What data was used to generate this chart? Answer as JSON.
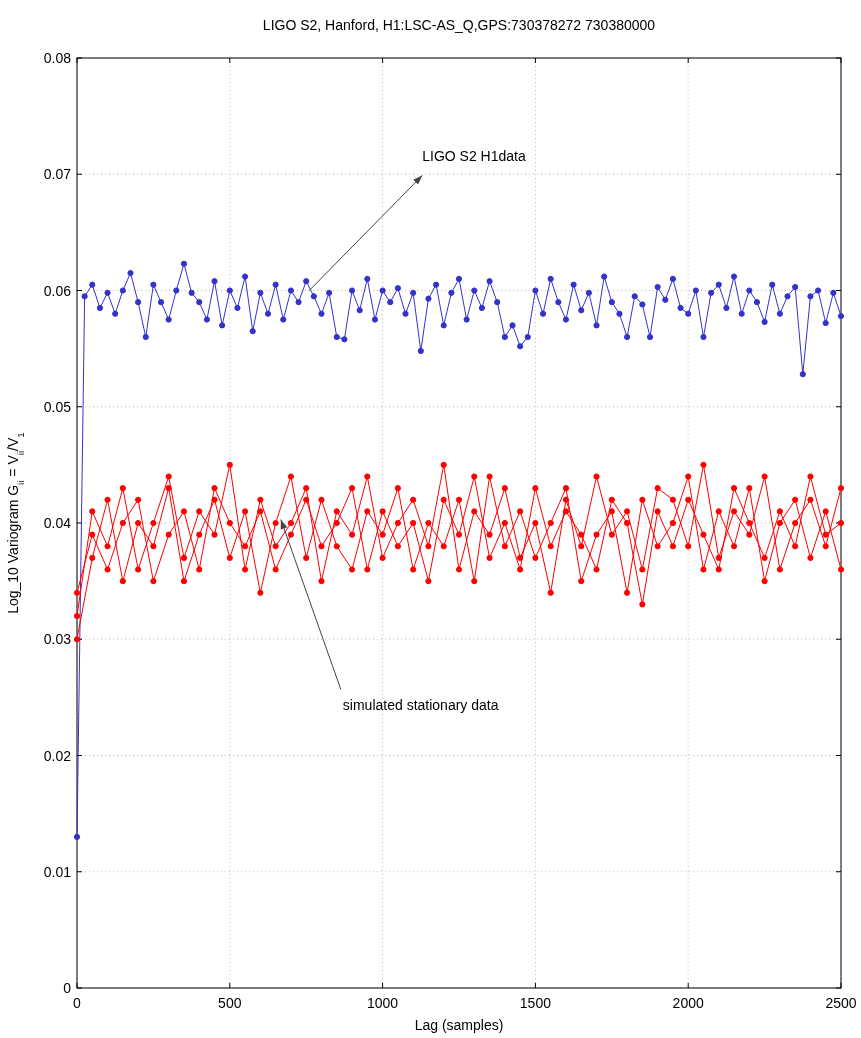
{
  "chart_data": {
    "type": "line",
    "title": "LIGO S2, Hanford, H1:LSC-AS_Q,GPS:730378272 730380000",
    "xlabel": "Lag (samples)",
    "ylabel": "Log_10 Variogram G$_{ii}$ = V$_{ii}$/V$_{1}$",
    "xlim": [
      0,
      2500
    ],
    "xticks": [
      0,
      500,
      1000,
      1500,
      2000,
      2500
    ],
    "ylim": [
      0,
      0.08
    ],
    "yticks": [
      0,
      0.01,
      0.02,
      0.03,
      0.04,
      0.05,
      0.06,
      0.07,
      0.08
    ],
    "grid": true,
    "marker": "circle",
    "line_style": "solid",
    "annotations": [
      {
        "text": "LIGO S2 H1data",
        "x": 760,
        "y": 0.06
      },
      {
        "text": "simulated stationary data",
        "x": 667,
        "y": 0.0403
      }
    ],
    "series": [
      {
        "color": "#3333cc",
        "x": [
          0,
          25,
          50,
          75,
          100,
          125,
          150,
          175,
          200,
          225,
          250,
          275,
          300,
          325,
          350,
          375,
          400,
          425,
          450,
          475,
          500,
          525,
          550,
          575,
          600,
          625,
          650,
          675,
          700,
          725,
          750,
          775,
          800,
          825,
          850,
          875,
          900,
          925,
          950,
          975,
          1000,
          1025,
          1050,
          1075,
          1100,
          1125,
          1150,
          1175,
          1200,
          1225,
          1250,
          1275,
          1300,
          1325,
          1350,
          1375,
          1400,
          1425,
          1450,
          1475,
          1500,
          1525,
          1550,
          1575,
          1600,
          1625,
          1650,
          1675,
          1700,
          1725,
          1750,
          1775,
          1800,
          1825,
          1850,
          1875,
          1900,
          1925,
          1950,
          1975,
          2000,
          2025,
          2050,
          2075,
          2100,
          2125,
          2150,
          2175,
          2200,
          2225,
          2250,
          2275,
          2300,
          2325,
          2350,
          2375,
          2400,
          2425,
          2450,
          2475,
          2500
        ],
        "values": [
          0.013,
          0.0595,
          0.0605,
          0.0585,
          0.0598,
          0.058,
          0.06,
          0.0615,
          0.059,
          0.056,
          0.0605,
          0.059,
          0.0575,
          0.06,
          0.0623,
          0.0598,
          0.059,
          0.0575,
          0.0608,
          0.057,
          0.06,
          0.0585,
          0.0612,
          0.0565,
          0.0598,
          0.058,
          0.0605,
          0.0575,
          0.06,
          0.059,
          0.0608,
          0.0595,
          0.058,
          0.0598,
          0.056,
          0.0558,
          0.06,
          0.0583,
          0.061,
          0.0575,
          0.06,
          0.059,
          0.0602,
          0.058,
          0.0598,
          0.0548,
          0.0593,
          0.0605,
          0.057,
          0.0598,
          0.061,
          0.0575,
          0.06,
          0.0585,
          0.0608,
          0.059,
          0.056,
          0.057,
          0.0552,
          0.056,
          0.06,
          0.058,
          0.061,
          0.059,
          0.0575,
          0.0605,
          0.0583,
          0.0598,
          0.057,
          0.0612,
          0.059,
          0.058,
          0.056,
          0.0595,
          0.0588,
          0.056,
          0.0603,
          0.0592,
          0.061,
          0.0585,
          0.058,
          0.06,
          0.056,
          0.0598,
          0.0605,
          0.0585,
          0.0612,
          0.058,
          0.06,
          0.059,
          0.0573,
          0.0605,
          0.058,
          0.0595,
          0.0603,
          0.0528,
          0.0595,
          0.06,
          0.0572,
          0.0598,
          0.0578
        ]
      },
      {
        "color": "#ff0000",
        "x": [
          0,
          50,
          100,
          150,
          200,
          250,
          300,
          350,
          400,
          450,
          500,
          550,
          600,
          650,
          700,
          750,
          800,
          850,
          900,
          950,
          1000,
          1050,
          1100,
          1150,
          1200,
          1250,
          1300,
          1350,
          1400,
          1450,
          1500,
          1550,
          1600,
          1650,
          1700,
          1750,
          1800,
          1850,
          1900,
          1950,
          2000,
          2050,
          2100,
          2150,
          2200,
          2250,
          2300,
          2350,
          2400,
          2450,
          2500
        ],
        "values": [
          0.032,
          0.041,
          0.038,
          0.043,
          0.036,
          0.04,
          0.044,
          0.037,
          0.041,
          0.039,
          0.045,
          0.036,
          0.042,
          0.038,
          0.04,
          0.043,
          0.035,
          0.041,
          0.039,
          0.044,
          0.037,
          0.04,
          0.042,
          0.038,
          0.045,
          0.036,
          0.041,
          0.039,
          0.043,
          0.037,
          0.04,
          0.034,
          0.042,
          0.038,
          0.044,
          0.039,
          0.041,
          0.036,
          0.043,
          0.042,
          0.038,
          0.045,
          0.037,
          0.041,
          0.039,
          0.044,
          0.036,
          0.04,
          0.042,
          0.038,
          0.043
        ]
      },
      {
        "color": "#ff0000",
        "x": [
          0,
          50,
          100,
          150,
          200,
          250,
          300,
          350,
          400,
          450,
          500,
          550,
          600,
          650,
          700,
          750,
          800,
          850,
          900,
          950,
          1000,
          1050,
          1100,
          1150,
          1200,
          1250,
          1300,
          1350,
          1400,
          1450,
          1500,
          1550,
          1600,
          1650,
          1700,
          1750,
          1800,
          1850,
          1900,
          1950,
          2000,
          2050,
          2100,
          2150,
          2200,
          2250,
          2300,
          2350,
          2400,
          2450,
          2500
        ],
        "values": [
          0.03,
          0.037,
          0.042,
          0.035,
          0.04,
          0.038,
          0.043,
          0.035,
          0.039,
          0.042,
          0.037,
          0.041,
          0.034,
          0.04,
          0.044,
          0.037,
          0.042,
          0.038,
          0.036,
          0.041,
          0.039,
          0.043,
          0.036,
          0.04,
          0.038,
          0.042,
          0.035,
          0.044,
          0.038,
          0.041,
          0.037,
          0.04,
          0.043,
          0.035,
          0.039,
          0.041,
          0.034,
          0.042,
          0.038,
          0.04,
          0.044,
          0.036,
          0.041,
          0.038,
          0.043,
          0.035,
          0.04,
          0.042,
          0.037,
          0.041,
          0.036
        ]
      },
      {
        "color": "#ff0000",
        "x": [
          0,
          50,
          100,
          150,
          200,
          250,
          300,
          350,
          400,
          450,
          500,
          550,
          600,
          650,
          700,
          750,
          800,
          850,
          900,
          950,
          1000,
          1050,
          1100,
          1150,
          1200,
          1250,
          1300,
          1350,
          1400,
          1450,
          1500,
          1550,
          1600,
          1650,
          1700,
          1750,
          1800,
          1850,
          1900,
          1950,
          2000,
          2050,
          2100,
          2150,
          2200,
          2250,
          2300,
          2350,
          2400,
          2450,
          2500
        ],
        "values": [
          0.034,
          0.039,
          0.036,
          0.04,
          0.042,
          0.035,
          0.039,
          0.041,
          0.036,
          0.043,
          0.04,
          0.038,
          0.041,
          0.036,
          0.039,
          0.042,
          0.038,
          0.04,
          0.043,
          0.036,
          0.041,
          0.038,
          0.04,
          0.035,
          0.042,
          0.039,
          0.044,
          0.037,
          0.04,
          0.036,
          0.043,
          0.038,
          0.041,
          0.039,
          0.036,
          0.042,
          0.04,
          0.033,
          0.041,
          0.038,
          0.042,
          0.039,
          0.036,
          0.043,
          0.04,
          0.037,
          0.041,
          0.038,
          0.044,
          0.039,
          0.04
        ]
      }
    ]
  }
}
